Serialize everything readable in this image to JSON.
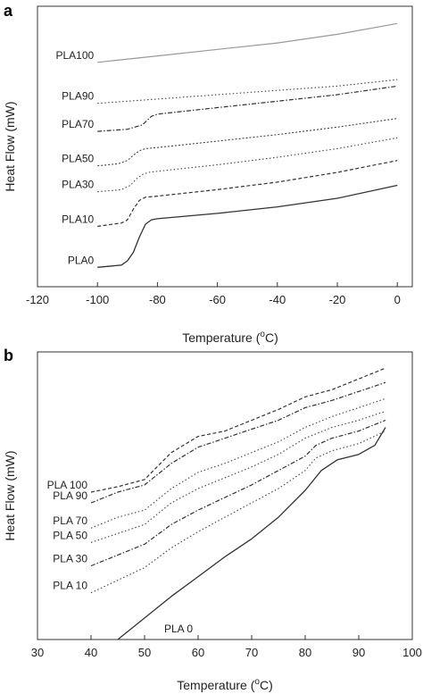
{
  "chart_data": [
    {
      "type": "line",
      "panel": "a",
      "title": "",
      "xlabel": "Temperature (°C)",
      "ylabel": "Heat Flow (mW)",
      "xlim": [
        -120,
        5
      ],
      "xticks": [
        "-120",
        "-100",
        "-80",
        "-60",
        "-40",
        "-20",
        "0"
      ],
      "yticks_shown": false,
      "grid": false,
      "legend": "inline labels at left of each curve",
      "series": [
        {
          "name": "PLA100",
          "style": "solid-gray",
          "x": [
            -100,
            -80,
            -60,
            -40,
            -20,
            0
          ],
          "y": [
            10.4,
            10.7,
            11.0,
            11.3,
            11.7,
            12.2
          ]
        },
        {
          "name": "PLA90",
          "style": "dotted",
          "x": [
            -100,
            -80,
            -60,
            -40,
            -20,
            0
          ],
          "y": [
            8.5,
            8.7,
            8.9,
            9.1,
            9.3,
            9.6
          ]
        },
        {
          "name": "PLA70",
          "style": "dash-dot",
          "x": [
            -100,
            -90,
            -85,
            -82,
            -80,
            -60,
            -40,
            -20,
            0
          ],
          "y": [
            7.2,
            7.3,
            7.5,
            7.9,
            8.0,
            8.3,
            8.6,
            8.9,
            9.3
          ]
        },
        {
          "name": "PLA50",
          "style": "dense-dash",
          "x": [
            -100,
            -93,
            -90,
            -88,
            -86,
            -84,
            -80,
            -60,
            -40,
            -20,
            0
          ],
          "y": [
            5.6,
            5.7,
            5.85,
            6.1,
            6.3,
            6.4,
            6.45,
            6.75,
            7.05,
            7.4,
            7.8
          ]
        },
        {
          "name": "PLA30",
          "style": "dotted",
          "x": [
            -100,
            -92,
            -89,
            -87,
            -85,
            -83,
            -80,
            -60,
            -40,
            -20,
            0
          ],
          "y": [
            4.4,
            4.5,
            4.7,
            5.0,
            5.2,
            5.3,
            5.35,
            5.65,
            6.0,
            6.4,
            6.9
          ]
        },
        {
          "name": "PLA10",
          "style": "dashed",
          "x": [
            -100,
            -92,
            -90,
            -88,
            -86,
            -84,
            -80,
            -60,
            -40,
            -20,
            0
          ],
          "y": [
            2.8,
            2.95,
            3.1,
            3.6,
            4.0,
            4.15,
            4.2,
            4.5,
            4.85,
            5.3,
            5.85
          ]
        },
        {
          "name": "PLA0",
          "style": "solid-dark",
          "x": [
            -100,
            -92,
            -90,
            -88,
            -86,
            -84,
            -82,
            -80,
            -60,
            -40,
            -20,
            0
          ],
          "y": [
            0.9,
            1.0,
            1.2,
            1.6,
            2.3,
            2.9,
            3.1,
            3.15,
            3.4,
            3.7,
            4.1,
            4.7
          ]
        }
      ]
    },
    {
      "type": "line",
      "panel": "b",
      "title": "",
      "xlabel": "Temperature (°C)",
      "ylabel": "Heat Flow (mW)",
      "xlim": [
        30,
        100
      ],
      "xticks": [
        "30",
        "40",
        "50",
        "60",
        "70",
        "80",
        "90",
        "100"
      ],
      "yticks_shown": false,
      "grid": false,
      "legend": "inline labels at left of each curve",
      "series": [
        {
          "name": "PLA 100",
          "style": "dashed",
          "x": [
            40,
            45,
            50,
            55,
            60,
            65,
            70,
            75,
            80,
            85,
            90,
            95
          ],
          "y": [
            8.2,
            8.5,
            8.9,
            10.4,
            11.3,
            11.6,
            12.2,
            12.8,
            13.5,
            13.9,
            14.5,
            15.1
          ]
        },
        {
          "name": "PLA 90",
          "style": "dash-dot",
          "x": [
            40,
            45,
            50,
            55,
            60,
            65,
            70,
            75,
            80,
            85,
            90,
            95
          ],
          "y": [
            7.6,
            8.2,
            8.6,
            9.8,
            10.7,
            11.2,
            11.7,
            12.2,
            12.9,
            13.3,
            13.8,
            14.3
          ]
        },
        {
          "name": "PLA 70",
          "style": "dotted",
          "x": [
            40,
            45,
            50,
            55,
            60,
            65,
            70,
            75,
            80,
            85,
            90,
            95
          ],
          "y": [
            6.2,
            6.8,
            7.2,
            8.4,
            9.3,
            9.8,
            10.4,
            11.0,
            11.8,
            12.4,
            12.9,
            13.4
          ]
        },
        {
          "name": "PLA 50",
          "style": "dotted",
          "x": [
            40,
            45,
            50,
            55,
            60,
            65,
            70,
            75,
            80,
            85,
            90,
            95
          ],
          "y": [
            5.4,
            5.9,
            6.4,
            7.6,
            8.4,
            9.0,
            9.6,
            10.3,
            11.2,
            11.8,
            12.2,
            12.7
          ]
        },
        {
          "name": "PLA 30",
          "style": "dash-dot",
          "x": [
            40,
            45,
            50,
            55,
            60,
            65,
            70,
            75,
            80,
            82,
            85,
            90,
            95
          ],
          "y": [
            4.1,
            4.7,
            5.3,
            6.4,
            7.2,
            7.9,
            8.6,
            9.4,
            10.2,
            10.8,
            11.2,
            11.6,
            12.2
          ]
        },
        {
          "name": "PLA 10",
          "style": "dotted",
          "x": [
            40,
            45,
            50,
            55,
            60,
            65,
            70,
            75,
            80,
            82,
            85,
            90,
            95
          ],
          "y": [
            2.6,
            3.3,
            4.0,
            5.1,
            6.0,
            6.8,
            7.6,
            8.4,
            9.4,
            10.1,
            10.5,
            10.9,
            11.6
          ]
        },
        {
          "name": "PLA 0",
          "style": "solid-dark",
          "x": [
            45,
            50,
            55,
            60,
            65,
            70,
            75,
            80,
            83,
            86,
            90,
            93,
            95
          ],
          "y": [
            0.0,
            1.2,
            2.4,
            3.5,
            4.6,
            5.6,
            6.8,
            8.3,
            9.4,
            10.0,
            10.3,
            10.8,
            11.8
          ]
        }
      ]
    }
  ],
  "panel_a": {
    "letter": "a",
    "ylabel": "Heat Flow (mW)",
    "xlabel": "Temperature (",
    "xlabel_sup": "o",
    "xlabel_end": "C)",
    "ylim": [
      0,
      13
    ]
  },
  "panel_b": {
    "letter": "b",
    "ylabel": "Heat Flow (mW)",
    "xlabel": "Temperature (",
    "xlabel_sup": "o",
    "xlabel_end": "C)",
    "ylim": [
      0,
      16
    ]
  }
}
